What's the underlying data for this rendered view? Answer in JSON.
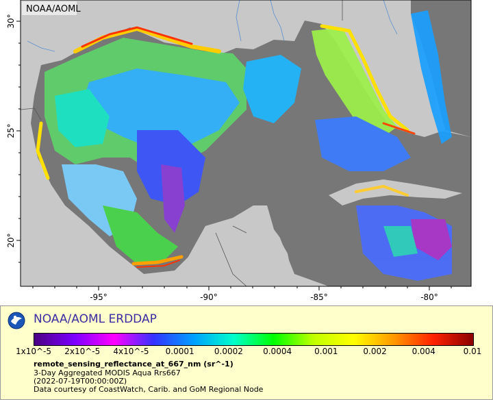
{
  "map": {
    "credit": "NOAA/AOML",
    "lat_labels": [
      "30°",
      "25°",
      "20°"
    ],
    "lon_labels": [
      "-95°",
      "-90°",
      "-85°",
      "-80°"
    ]
  },
  "legend": {
    "title": "NOAA/AOML ERDDAP",
    "colorbar_ticks": [
      "1x10^-5",
      "2x10^-5",
      "4x10^-5",
      "0.0001",
      "0.0002",
      "0.0004",
      "0.001",
      "0.002",
      "0.004",
      "0.01"
    ],
    "variable": "remote_sensing_reflectance_at_667_nm (sr^-1)",
    "line1": "3-Day Aggregated MODIS Aqua Rrs667",
    "line2": "(2022-07-19T00:00:00Z)",
    "line3": "Data courtesy of CoastWatch, Carib. and GoM Regional Node",
    "colors": [
      "#4b0082",
      "#7a00ff",
      "#ff00ff",
      "#3333ff",
      "#00a0ff",
      "#00ffcc",
      "#00ff00",
      "#c0ff00",
      "#ffff00",
      "#ff9900",
      "#ff2200",
      "#8b0000"
    ]
  }
}
